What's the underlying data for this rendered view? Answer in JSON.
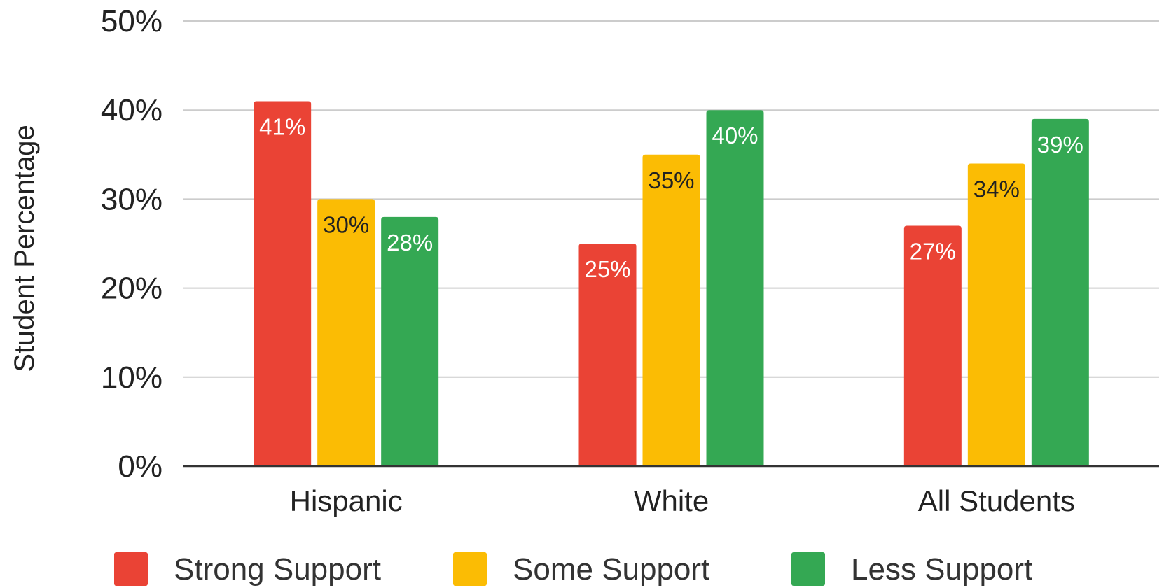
{
  "chart_data": {
    "type": "bar",
    "ylabel": "Student Percentage",
    "xlabel": "",
    "ylim": [
      0,
      50
    ],
    "ytick_values": [
      0,
      10,
      20,
      30,
      40,
      50
    ],
    "ytick_labels": [
      "0%",
      "10%",
      "20%",
      "30%",
      "40%",
      "50%"
    ],
    "categories": [
      "Hispanic",
      "White",
      "All Students"
    ],
    "series": [
      {
        "name": "Strong Support",
        "color": "#EA4335",
        "label_color": "#ffffff",
        "values": [
          41,
          25,
          27
        ],
        "labels": [
          "41%",
          "25%",
          "27%"
        ]
      },
      {
        "name": "Some Support",
        "color": "#FBBC04",
        "label_color": "#222222",
        "values": [
          30,
          35,
          34
        ],
        "labels": [
          "30%",
          "35%",
          "34%"
        ]
      },
      {
        "name": "Less Support",
        "color": "#34A853",
        "label_color": "#ffffff",
        "values": [
          28,
          40,
          39
        ],
        "labels": [
          "28%",
          "40%",
          "39%"
        ]
      }
    ],
    "grid": true,
    "legend_position": "bottom"
  }
}
